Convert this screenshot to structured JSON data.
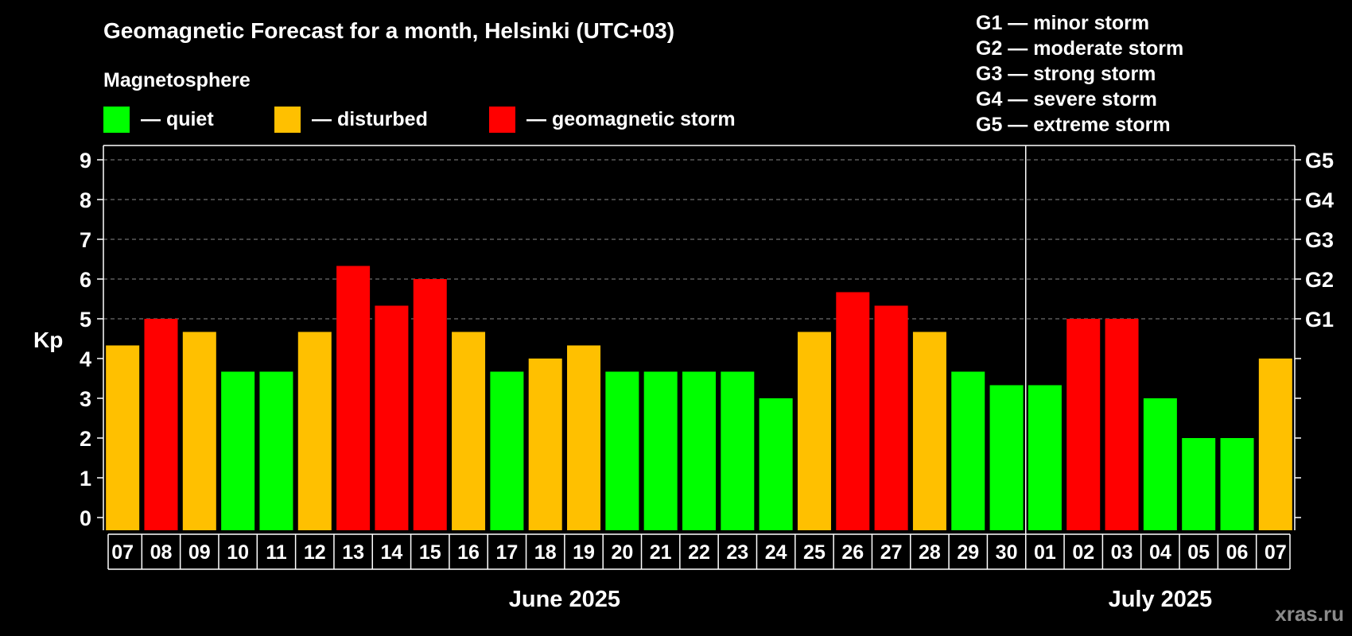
{
  "chart_data": {
    "type": "bar",
    "title": "Geomagnetic Forecast for a month, Helsinki (UTC+03)",
    "ylabel": "Kp",
    "ylim": [
      0,
      9
    ],
    "yticks": [
      0,
      1,
      2,
      3,
      4,
      5,
      6,
      7,
      8,
      9
    ],
    "right_axis_labels": [
      {
        "kp": 5,
        "label": "G1"
      },
      {
        "kp": 6,
        "label": "G2"
      },
      {
        "kp": 7,
        "label": "G3"
      },
      {
        "kp": 8,
        "label": "G4"
      },
      {
        "kp": 9,
        "label": "G5"
      }
    ],
    "grid": "dashed horizontal at each Kp level from 5 to 9",
    "categories": [
      "07",
      "08",
      "09",
      "10",
      "11",
      "12",
      "13",
      "14",
      "15",
      "16",
      "17",
      "18",
      "19",
      "20",
      "21",
      "22",
      "23",
      "24",
      "25",
      "26",
      "27",
      "28",
      "29",
      "30",
      "01",
      "02",
      "03",
      "04",
      "05",
      "06",
      "07"
    ],
    "values": [
      4.33,
      5,
      4.67,
      3.67,
      3.67,
      4.67,
      6.33,
      5.33,
      6,
      4.67,
      3.67,
      4,
      4.33,
      3.67,
      3.67,
      3.67,
      3.67,
      3,
      4.67,
      5.67,
      5.33,
      4.67,
      3.67,
      3.33,
      3.33,
      5,
      5,
      3,
      2,
      2,
      4
    ],
    "months": [
      {
        "label": "June 2025",
        "first_index": 0,
        "last_index": 23
      },
      {
        "label": "July 2025",
        "first_index": 24,
        "last_index": 30
      }
    ],
    "month_divider_before_index": 24,
    "legend": {
      "heading": "Magnetosphere",
      "items": [
        {
          "label": "— quiet",
          "color": "#00ff00"
        },
        {
          "label": "— disturbed",
          "color": "#ffc000"
        },
        {
          "label": "— geomagnetic storm",
          "color": "#ff0000"
        }
      ]
    },
    "storm_scale": [
      "G1 — minor storm",
      "G2 — moderate storm",
      "G3 — strong storm",
      "G4 — severe storm",
      "G5 — extreme storm"
    ]
  },
  "colors": {
    "background": "#000000",
    "quiet": "#00ff00",
    "disturbed": "#ffc000",
    "storm": "#ff0000",
    "axis": "#ffffff",
    "grid": "#888888",
    "watermark": "#8a8a8a"
  },
  "watermark": "xras.ru"
}
